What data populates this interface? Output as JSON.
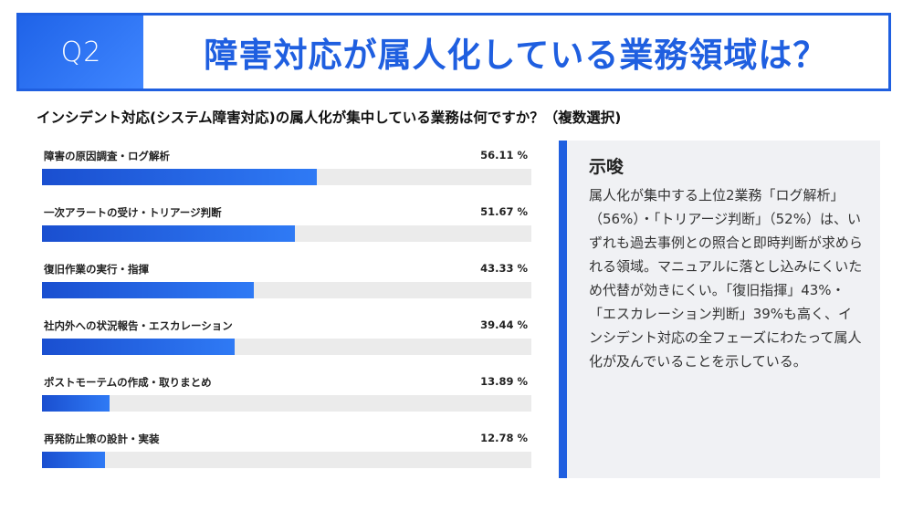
{
  "header": {
    "q_label": "Q2",
    "title": "障害対応が属人化している業務領域は？"
  },
  "question": "インシデント対応(システム障害対応)の属人化が集中している業務は何ですか？（複数選択)",
  "chart_data": {
    "type": "bar",
    "orientation": "horizontal",
    "categories": [
      "障害の原因調査・ログ解析",
      "一次アラートの受け・トリアージ判断",
      "復旧作業の実行・指揮",
      "社内外への状況報告・エスカレーション",
      "ポストモーテムの作成・取りまとめ",
      "再発防止策の設計・実装"
    ],
    "values": [
      56.11,
      51.67,
      43.33,
      39.44,
      13.89,
      12.78
    ],
    "value_labels": [
      "56.11 %",
      "51.67 %",
      "43.33 %",
      "39.44 %",
      "13.89 %",
      "12.78 %"
    ],
    "xlim": [
      0,
      100
    ],
    "colors": {
      "bar": "#1f5fe0",
      "track": "#ebebeb"
    }
  },
  "insight": {
    "title": "示唆",
    "body": "属人化が集中する上位2業務「ログ解析」（56%）・「トリアージ判断」（52%）は、いずれも過去事例との照合と即時判断が求められる領域。マニュアルに落とし込みにくいため代替が効きにくい。「復旧指揮」43%・「エスカレーション判断」39%も高く、インシデント対応の全フェーズにわたって属人化が及んでいることを示している。"
  },
  "colors": {
    "accent": "#1f5fe0",
    "panel": "#f0f1f4"
  }
}
